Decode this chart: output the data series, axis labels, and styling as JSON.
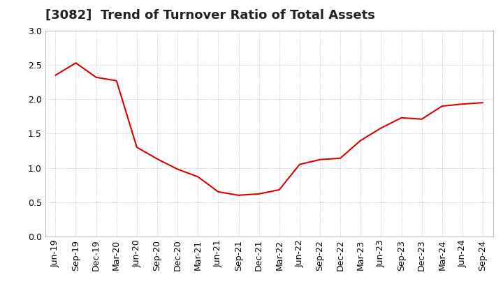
{
  "title": "[3082]  Trend of Turnover Ratio of Total Assets",
  "x_labels": [
    "Jun-19",
    "Sep-19",
    "Dec-19",
    "Mar-20",
    "Jun-20",
    "Sep-20",
    "Dec-20",
    "Mar-21",
    "Jun-21",
    "Sep-21",
    "Dec-21",
    "Mar-22",
    "Jun-22",
    "Sep-22",
    "Dec-22",
    "Mar-23",
    "Jun-23",
    "Sep-23",
    "Dec-23",
    "Mar-24",
    "Jun-24",
    "Sep-24"
  ],
  "y_values": [
    2.35,
    2.53,
    2.32,
    2.27,
    1.3,
    1.13,
    0.98,
    0.87,
    0.65,
    0.6,
    0.62,
    0.68,
    1.05,
    1.12,
    1.14,
    1.4,
    1.58,
    1.73,
    1.71,
    1.9,
    1.93,
    1.95
  ],
  "line_color": "#dd0000",
  "ylim": [
    0.0,
    3.0
  ],
  "yticks": [
    0.0,
    0.5,
    1.0,
    1.5,
    2.0,
    2.5,
    3.0
  ],
  "background_color": "#ffffff",
  "grid_color": "#999999",
  "title_fontsize": 13,
  "tick_fontsize": 9
}
